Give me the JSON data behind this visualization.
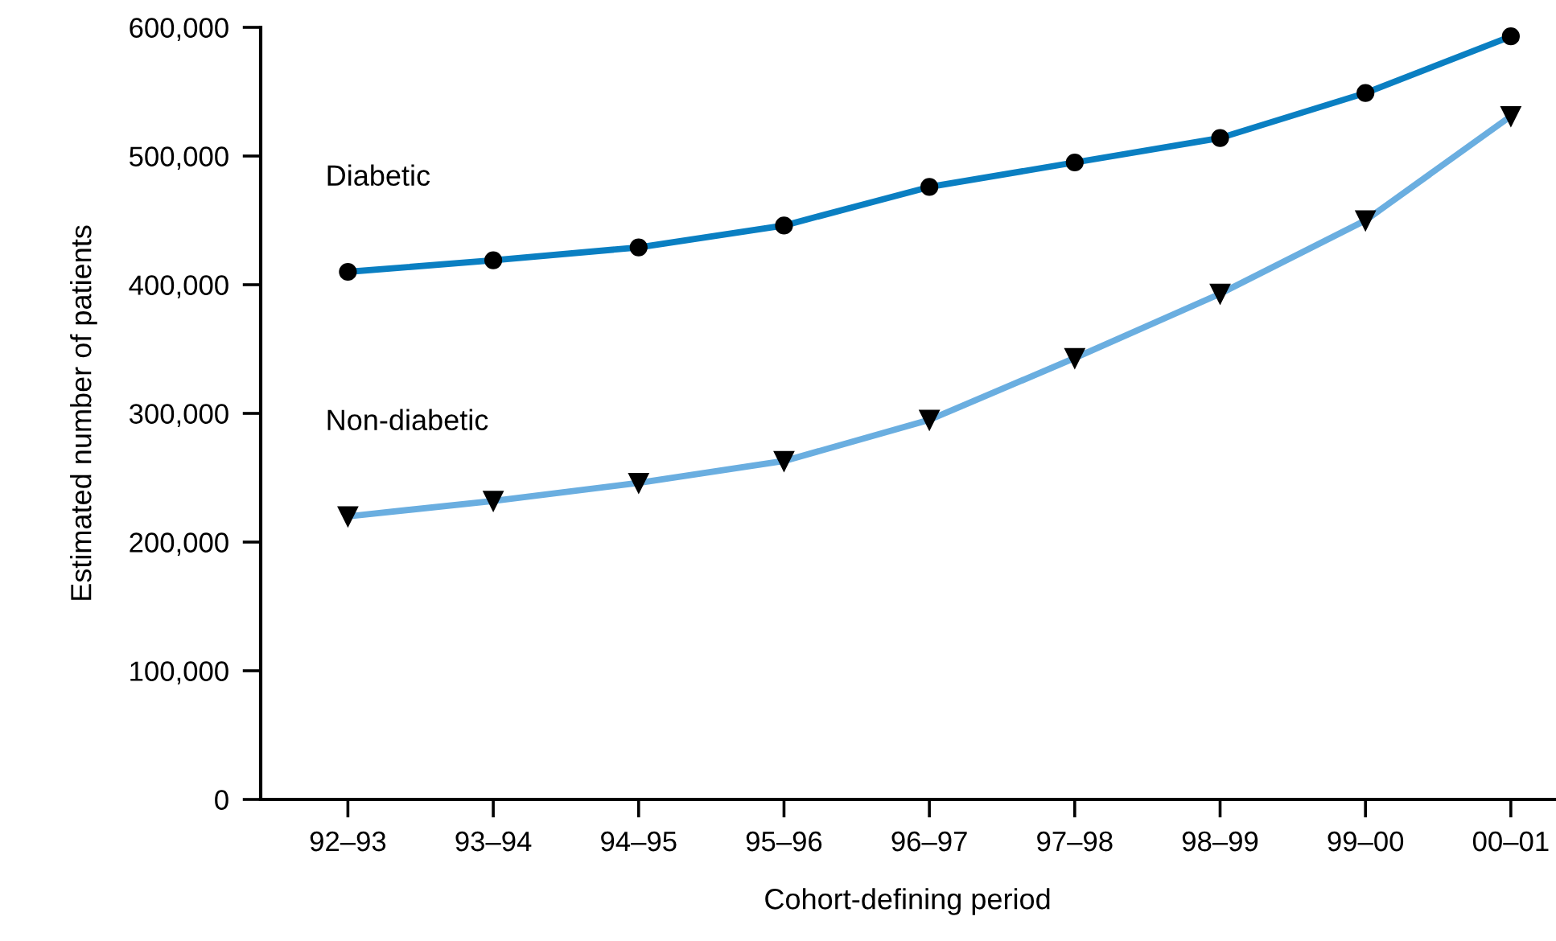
{
  "chart_data": {
    "type": "line",
    "xlabel": "Cohort-defining period",
    "ylabel": "Estimated number of patients",
    "categories": [
      "92–93",
      "93–94",
      "94–95",
      "95–96",
      "96–97",
      "97–98",
      "98–99",
      "99–00",
      "00–01"
    ],
    "series": [
      {
        "name": "Diabetic",
        "color": "#0a7fc2",
        "marker": "circle",
        "values": [
          410000,
          419000,
          429000,
          446000,
          476000,
          495000,
          514000,
          549000,
          593000
        ]
      },
      {
        "name": "Non-diabetic",
        "color": "#6aaee0",
        "marker": "triangle",
        "values": [
          220000,
          232000,
          246000,
          263000,
          295000,
          343000,
          393000,
          450000,
          531000
        ]
      }
    ],
    "ylim": [
      0,
      600000
    ],
    "yticks": [
      {
        "value": 0,
        "label": "0"
      },
      {
        "value": 100000,
        "label": "100,000"
      },
      {
        "value": 200000,
        "label": "200,000"
      },
      {
        "value": 300000,
        "label": "300,000"
      },
      {
        "value": 400000,
        "label": "400,000"
      },
      {
        "value": 500000,
        "label": "500,000"
      },
      {
        "value": 600000,
        "label": "600,000"
      }
    ],
    "grid": false,
    "legend": false,
    "line_style": "solid"
  }
}
